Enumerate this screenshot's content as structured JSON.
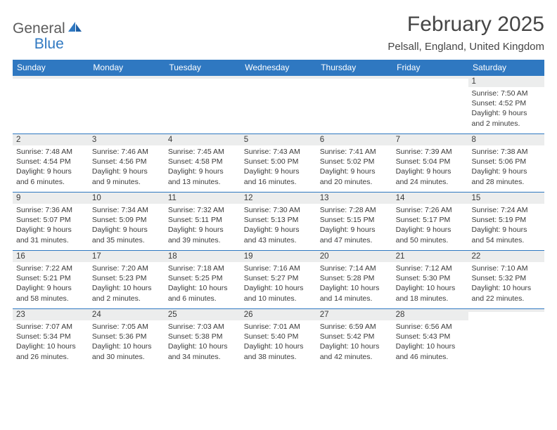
{
  "brand": {
    "part1": "General",
    "part2": "Blue"
  },
  "title": "February 2025",
  "location": "Pelsall, England, United Kingdom",
  "colors": {
    "accent": "#2f78c1",
    "daynum_bg": "#eceded",
    "text": "#3a3a3a"
  },
  "day_headers": [
    "Sunday",
    "Monday",
    "Tuesday",
    "Wednesday",
    "Thursday",
    "Friday",
    "Saturday"
  ],
  "weeks": [
    [
      {
        "n": "",
        "sr": "",
        "ss": "",
        "dl1": "",
        "dl2": ""
      },
      {
        "n": "",
        "sr": "",
        "ss": "",
        "dl1": "",
        "dl2": ""
      },
      {
        "n": "",
        "sr": "",
        "ss": "",
        "dl1": "",
        "dl2": ""
      },
      {
        "n": "",
        "sr": "",
        "ss": "",
        "dl1": "",
        "dl2": ""
      },
      {
        "n": "",
        "sr": "",
        "ss": "",
        "dl1": "",
        "dl2": ""
      },
      {
        "n": "",
        "sr": "",
        "ss": "",
        "dl1": "",
        "dl2": ""
      },
      {
        "n": "1",
        "sr": "Sunrise: 7:50 AM",
        "ss": "Sunset: 4:52 PM",
        "dl1": "Daylight: 9 hours",
        "dl2": "and 2 minutes."
      }
    ],
    [
      {
        "n": "2",
        "sr": "Sunrise: 7:48 AM",
        "ss": "Sunset: 4:54 PM",
        "dl1": "Daylight: 9 hours",
        "dl2": "and 6 minutes."
      },
      {
        "n": "3",
        "sr": "Sunrise: 7:46 AM",
        "ss": "Sunset: 4:56 PM",
        "dl1": "Daylight: 9 hours",
        "dl2": "and 9 minutes."
      },
      {
        "n": "4",
        "sr": "Sunrise: 7:45 AM",
        "ss": "Sunset: 4:58 PM",
        "dl1": "Daylight: 9 hours",
        "dl2": "and 13 minutes."
      },
      {
        "n": "5",
        "sr": "Sunrise: 7:43 AM",
        "ss": "Sunset: 5:00 PM",
        "dl1": "Daylight: 9 hours",
        "dl2": "and 16 minutes."
      },
      {
        "n": "6",
        "sr": "Sunrise: 7:41 AM",
        "ss": "Sunset: 5:02 PM",
        "dl1": "Daylight: 9 hours",
        "dl2": "and 20 minutes."
      },
      {
        "n": "7",
        "sr": "Sunrise: 7:39 AM",
        "ss": "Sunset: 5:04 PM",
        "dl1": "Daylight: 9 hours",
        "dl2": "and 24 minutes."
      },
      {
        "n": "8",
        "sr": "Sunrise: 7:38 AM",
        "ss": "Sunset: 5:06 PM",
        "dl1": "Daylight: 9 hours",
        "dl2": "and 28 minutes."
      }
    ],
    [
      {
        "n": "9",
        "sr": "Sunrise: 7:36 AM",
        "ss": "Sunset: 5:07 PM",
        "dl1": "Daylight: 9 hours",
        "dl2": "and 31 minutes."
      },
      {
        "n": "10",
        "sr": "Sunrise: 7:34 AM",
        "ss": "Sunset: 5:09 PM",
        "dl1": "Daylight: 9 hours",
        "dl2": "and 35 minutes."
      },
      {
        "n": "11",
        "sr": "Sunrise: 7:32 AM",
        "ss": "Sunset: 5:11 PM",
        "dl1": "Daylight: 9 hours",
        "dl2": "and 39 minutes."
      },
      {
        "n": "12",
        "sr": "Sunrise: 7:30 AM",
        "ss": "Sunset: 5:13 PM",
        "dl1": "Daylight: 9 hours",
        "dl2": "and 43 minutes."
      },
      {
        "n": "13",
        "sr": "Sunrise: 7:28 AM",
        "ss": "Sunset: 5:15 PM",
        "dl1": "Daylight: 9 hours",
        "dl2": "and 47 minutes."
      },
      {
        "n": "14",
        "sr": "Sunrise: 7:26 AM",
        "ss": "Sunset: 5:17 PM",
        "dl1": "Daylight: 9 hours",
        "dl2": "and 50 minutes."
      },
      {
        "n": "15",
        "sr": "Sunrise: 7:24 AM",
        "ss": "Sunset: 5:19 PM",
        "dl1": "Daylight: 9 hours",
        "dl2": "and 54 minutes."
      }
    ],
    [
      {
        "n": "16",
        "sr": "Sunrise: 7:22 AM",
        "ss": "Sunset: 5:21 PM",
        "dl1": "Daylight: 9 hours",
        "dl2": "and 58 minutes."
      },
      {
        "n": "17",
        "sr": "Sunrise: 7:20 AM",
        "ss": "Sunset: 5:23 PM",
        "dl1": "Daylight: 10 hours",
        "dl2": "and 2 minutes."
      },
      {
        "n": "18",
        "sr": "Sunrise: 7:18 AM",
        "ss": "Sunset: 5:25 PM",
        "dl1": "Daylight: 10 hours",
        "dl2": "and 6 minutes."
      },
      {
        "n": "19",
        "sr": "Sunrise: 7:16 AM",
        "ss": "Sunset: 5:27 PM",
        "dl1": "Daylight: 10 hours",
        "dl2": "and 10 minutes."
      },
      {
        "n": "20",
        "sr": "Sunrise: 7:14 AM",
        "ss": "Sunset: 5:28 PM",
        "dl1": "Daylight: 10 hours",
        "dl2": "and 14 minutes."
      },
      {
        "n": "21",
        "sr": "Sunrise: 7:12 AM",
        "ss": "Sunset: 5:30 PM",
        "dl1": "Daylight: 10 hours",
        "dl2": "and 18 minutes."
      },
      {
        "n": "22",
        "sr": "Sunrise: 7:10 AM",
        "ss": "Sunset: 5:32 PM",
        "dl1": "Daylight: 10 hours",
        "dl2": "and 22 minutes."
      }
    ],
    [
      {
        "n": "23",
        "sr": "Sunrise: 7:07 AM",
        "ss": "Sunset: 5:34 PM",
        "dl1": "Daylight: 10 hours",
        "dl2": "and 26 minutes."
      },
      {
        "n": "24",
        "sr": "Sunrise: 7:05 AM",
        "ss": "Sunset: 5:36 PM",
        "dl1": "Daylight: 10 hours",
        "dl2": "and 30 minutes."
      },
      {
        "n": "25",
        "sr": "Sunrise: 7:03 AM",
        "ss": "Sunset: 5:38 PM",
        "dl1": "Daylight: 10 hours",
        "dl2": "and 34 minutes."
      },
      {
        "n": "26",
        "sr": "Sunrise: 7:01 AM",
        "ss": "Sunset: 5:40 PM",
        "dl1": "Daylight: 10 hours",
        "dl2": "and 38 minutes."
      },
      {
        "n": "27",
        "sr": "Sunrise: 6:59 AM",
        "ss": "Sunset: 5:42 PM",
        "dl1": "Daylight: 10 hours",
        "dl2": "and 42 minutes."
      },
      {
        "n": "28",
        "sr": "Sunrise: 6:56 AM",
        "ss": "Sunset: 5:43 PM",
        "dl1": "Daylight: 10 hours",
        "dl2": "and 46 minutes."
      },
      {
        "n": "",
        "sr": "",
        "ss": "",
        "dl1": "",
        "dl2": ""
      }
    ]
  ]
}
